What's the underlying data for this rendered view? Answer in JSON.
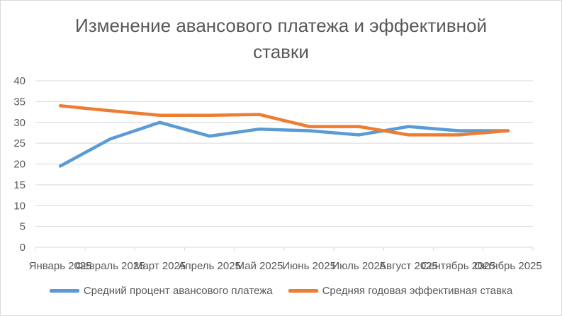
{
  "chart_data": {
    "type": "line",
    "title_lines": [
      "Изменение авансового платежа и эффективной",
      "ставки"
    ],
    "xlabel": "",
    "ylabel": "",
    "categories": [
      "Январь 2025",
      "Февраль 2025",
      "Март 2025",
      "Апрель 2025",
      "Май 2025",
      "Июнь 2025",
      "Июль 2025",
      "Август 2025",
      "Сентябрь 2025",
      "Октябрь 2025"
    ],
    "ylim": [
      0,
      40
    ],
    "yticks": [
      "0",
      "5",
      "10",
      "15",
      "20",
      "25",
      "30",
      "35",
      "40"
    ],
    "grid": true,
    "legend_position": "bottom",
    "series": [
      {
        "name": "Средний процент авансового платежа",
        "color": "#5b9bd5",
        "values": [
          19.5,
          26,
          30,
          26.7,
          28.4,
          28,
          27,
          29,
          28,
          28
        ]
      },
      {
        "name": "Средняя годовая эффективная ставка",
        "color": "#ed7d31",
        "values": [
          34,
          32.8,
          31.7,
          31.7,
          31.9,
          29,
          29,
          27,
          27,
          28
        ]
      }
    ]
  }
}
